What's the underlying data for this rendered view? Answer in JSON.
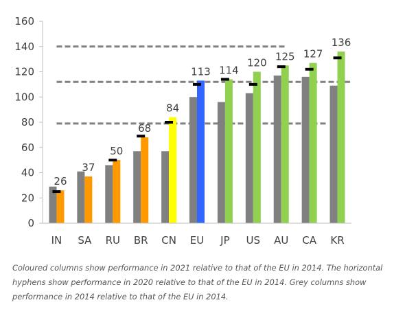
{
  "chart_data": {
    "type": "bar",
    "categories": [
      "IN",
      "SA",
      "RU",
      "BR",
      "CN",
      "EU",
      "JP",
      "US",
      "AU",
      "CA",
      "KR"
    ],
    "series": [
      {
        "values": [
          29,
          41,
          46,
          57,
          57,
          100,
          96,
          103,
          117,
          116,
          109
        ]
      },
      {
        "values": [
          26,
          37,
          50,
          68,
          84,
          113,
          114,
          120,
          125,
          127,
          136
        ]
      }
    ],
    "hyphen_values": [
      25,
      null,
      50,
      69,
      80,
      110,
      114,
      110,
      124,
      122,
      131
    ],
    "data_labels": [
      "26",
      "37",
      "50",
      "68",
      "84",
      "113",
      "114",
      "120",
      "125",
      "127",
      "136"
    ],
    "reference_lines": [
      79,
      112,
      140
    ],
    "ylim": [
      0,
      160
    ],
    "yticks": [
      0,
      20,
      40,
      60,
      80,
      100,
      120,
      140,
      160
    ],
    "grid": false,
    "colors": {
      "grey": "#808080",
      "orange": "#FF9900",
      "yellow": "#FFFF00",
      "blue": "#3366FF",
      "green": "#92D050",
      "hyphen": "#000000",
      "reference_line": "#808080"
    },
    "bar_colors": [
      "#FF9900",
      "#FF9900",
      "#FF9900",
      "#FF9900",
      "#FFFF00",
      "#3366FF",
      "#92D050",
      "#92D050",
      "#92D050",
      "#92D050",
      "#92D050"
    ]
  },
  "caption": "Coloured columns show performance in 2021 relative to that of the EU in 2014. The horizontal hyphens show performance in 2020 relative to that of the EU in 2014. Grey columns show performance in 2014 relative to that of the EU in 2014."
}
